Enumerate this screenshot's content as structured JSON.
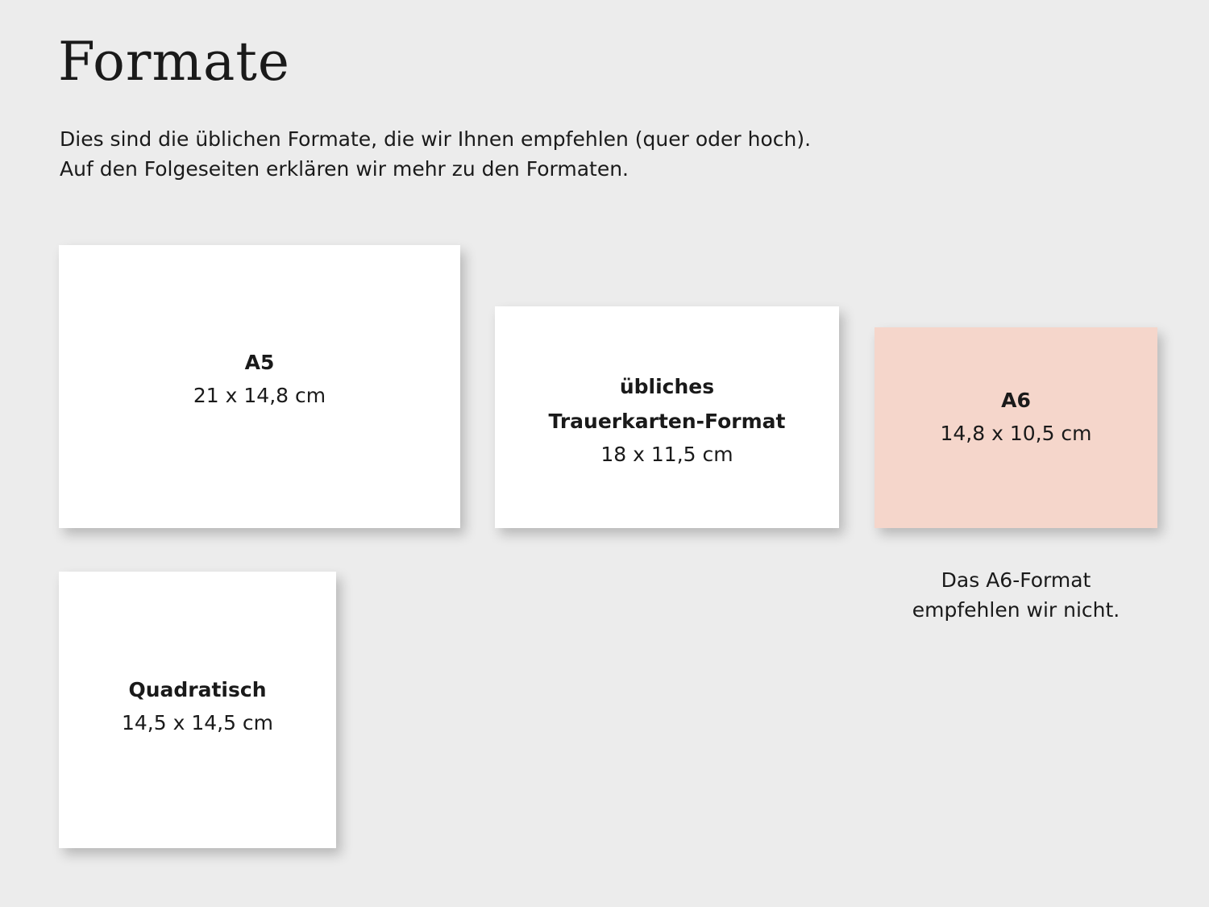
{
  "title": "Formate",
  "intro": {
    "line1": "Dies sind die üblichen Formate, die wir Ihnen empfehlen (quer oder hoch).",
    "line2": "Auf den Folgeseiten erklären wir mehr zu den Formaten."
  },
  "cards": [
    {
      "name": "A5",
      "size": "21 x 14,8 cm",
      "color": "#ffffff"
    },
    {
      "name_line1": "übliches",
      "name_line2": "Trauerkarten-Format",
      "size": "18 x 11,5 cm",
      "color": "#ffffff"
    },
    {
      "name": "A6",
      "size": "14,8 x 10,5 cm",
      "color": "#f5d6cb"
    },
    {
      "name": "Quadratisch",
      "size": "14,5 x 14,5 cm",
      "color": "#ffffff"
    }
  ],
  "note": {
    "line1": "Das A6-Format",
    "line2": "empfehlen wir nicht."
  }
}
